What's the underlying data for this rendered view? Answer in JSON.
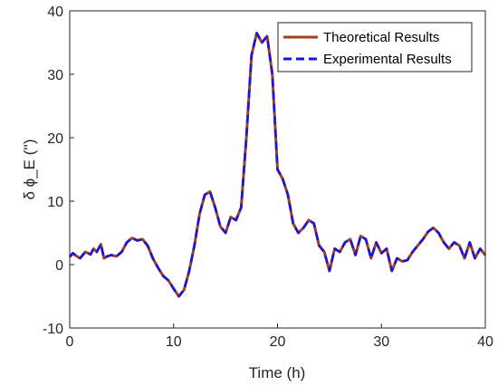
{
  "chart_data": {
    "type": "line",
    "title": "",
    "xlabel": "Time (h)",
    "ylabel": "δ ϕ_E ('')",
    "xlim": [
      0,
      40
    ],
    "ylim": [
      -10,
      40
    ],
    "xticks": [
      0,
      10,
      20,
      30,
      40
    ],
    "yticks": [
      -10,
      0,
      10,
      20,
      30,
      40
    ],
    "grid": false,
    "legend_position": "top-right",
    "series": [
      {
        "name": "Theoretical Results",
        "color": "#A0421E",
        "style": "solid",
        "x": [
          0,
          0.3,
          0.6,
          1.0,
          1.5,
          2.0,
          2.3,
          2.6,
          3.0,
          3.3,
          3.6,
          4.0,
          4.5,
          5.0,
          5.5,
          6.0,
          6.5,
          7.0,
          7.5,
          8.0,
          8.5,
          9.0,
          9.5,
          10.0,
          10.5,
          11.0,
          11.5,
          12.0,
          12.5,
          13.0,
          13.5,
          14.0,
          14.5,
          15.0,
          15.5,
          16.0,
          16.5,
          17.0,
          17.5,
          18.0,
          18.5,
          19.0,
          19.5,
          20.0,
          20.5,
          21.0,
          21.5,
          22.0,
          22.5,
          23.0,
          23.5,
          24.0,
          24.5,
          25.0,
          25.5,
          26.0,
          26.5,
          27.0,
          27.5,
          28.0,
          28.5,
          29.0,
          29.5,
          30.0,
          30.5,
          31.0,
          31.5,
          32.0,
          32.5,
          33.0,
          33.5,
          34.0,
          34.5,
          35.0,
          35.5,
          36.0,
          36.5,
          37.0,
          37.5,
          38.0,
          38.5,
          39.0,
          39.5,
          40.0
        ],
        "y": [
          1.2,
          1.8,
          1.4,
          1.0,
          2.0,
          1.6,
          2.5,
          2.0,
          3.2,
          1.0,
          1.3,
          1.5,
          1.3,
          2.0,
          3.5,
          4.2,
          3.8,
          4.0,
          3.0,
          1.0,
          -0.5,
          -1.8,
          -2.5,
          -3.8,
          -5.0,
          -4.0,
          -1.0,
          3.0,
          8.0,
          11.0,
          11.5,
          9.0,
          6.0,
          5.0,
          7.5,
          7.0,
          9.0,
          20.0,
          33.0,
          36.5,
          35.0,
          36.0,
          30.0,
          15.0,
          13.5,
          11.0,
          6.5,
          5.0,
          5.8,
          7.0,
          6.5,
          3.0,
          2.0,
          -1.0,
          2.5,
          2.0,
          3.5,
          4.0,
          1.5,
          4.5,
          4.0,
          1.0,
          3.5,
          1.8,
          2.5,
          -1.0,
          1.0,
          0.5,
          0.7,
          2.0,
          3.0,
          4.0,
          5.2,
          5.8,
          5.0,
          3.5,
          2.5,
          3.5,
          3.0,
          1.0,
          3.5,
          1.0,
          2.5,
          1.5
        ]
      },
      {
        "name": "Experimental Results",
        "color": "#1414E6",
        "style": "dashed",
        "x": [
          0,
          0.3,
          0.6,
          1.0,
          1.5,
          2.0,
          2.3,
          2.6,
          3.0,
          3.3,
          3.6,
          4.0,
          4.5,
          5.0,
          5.5,
          6.0,
          6.5,
          7.0,
          7.5,
          8.0,
          8.5,
          9.0,
          9.5,
          10.0,
          10.5,
          11.0,
          11.5,
          12.0,
          12.5,
          13.0,
          13.5,
          14.0,
          14.5,
          15.0,
          15.5,
          16.0,
          16.5,
          17.0,
          17.5,
          18.0,
          18.5,
          19.0,
          19.5,
          20.0,
          20.5,
          21.0,
          21.5,
          22.0,
          22.5,
          23.0,
          23.5,
          24.0,
          24.5,
          25.0,
          25.5,
          26.0,
          26.5,
          27.0,
          27.5,
          28.0,
          28.5,
          29.0,
          29.5,
          30.0,
          30.5,
          31.0,
          31.5,
          32.0,
          32.5,
          33.0,
          33.5,
          34.0,
          34.5,
          35.0,
          35.5,
          36.0,
          36.5,
          37.0,
          37.5,
          38.0,
          38.5,
          39.0,
          39.5,
          40.0
        ],
        "y": [
          1.2,
          1.8,
          1.4,
          1.0,
          2.0,
          1.6,
          2.5,
          2.0,
          3.2,
          1.0,
          1.3,
          1.5,
          1.3,
          2.0,
          3.5,
          4.2,
          3.8,
          4.0,
          3.0,
          1.0,
          -0.5,
          -1.8,
          -2.5,
          -3.8,
          -5.0,
          -4.0,
          -1.0,
          3.0,
          8.0,
          11.0,
          11.5,
          9.0,
          6.0,
          5.0,
          7.5,
          7.0,
          9.0,
          20.0,
          33.0,
          36.5,
          35.0,
          36.0,
          30.0,
          15.0,
          13.5,
          11.0,
          6.5,
          5.0,
          5.8,
          7.0,
          6.5,
          3.0,
          2.0,
          -1.0,
          2.5,
          2.0,
          3.5,
          4.0,
          1.5,
          4.5,
          4.0,
          1.0,
          3.5,
          1.8,
          2.5,
          -1.0,
          1.0,
          0.5,
          0.7,
          2.0,
          3.0,
          4.0,
          5.2,
          5.8,
          5.0,
          3.5,
          2.5,
          3.5,
          3.0,
          1.0,
          3.5,
          1.0,
          2.5,
          1.5
        ]
      }
    ]
  }
}
